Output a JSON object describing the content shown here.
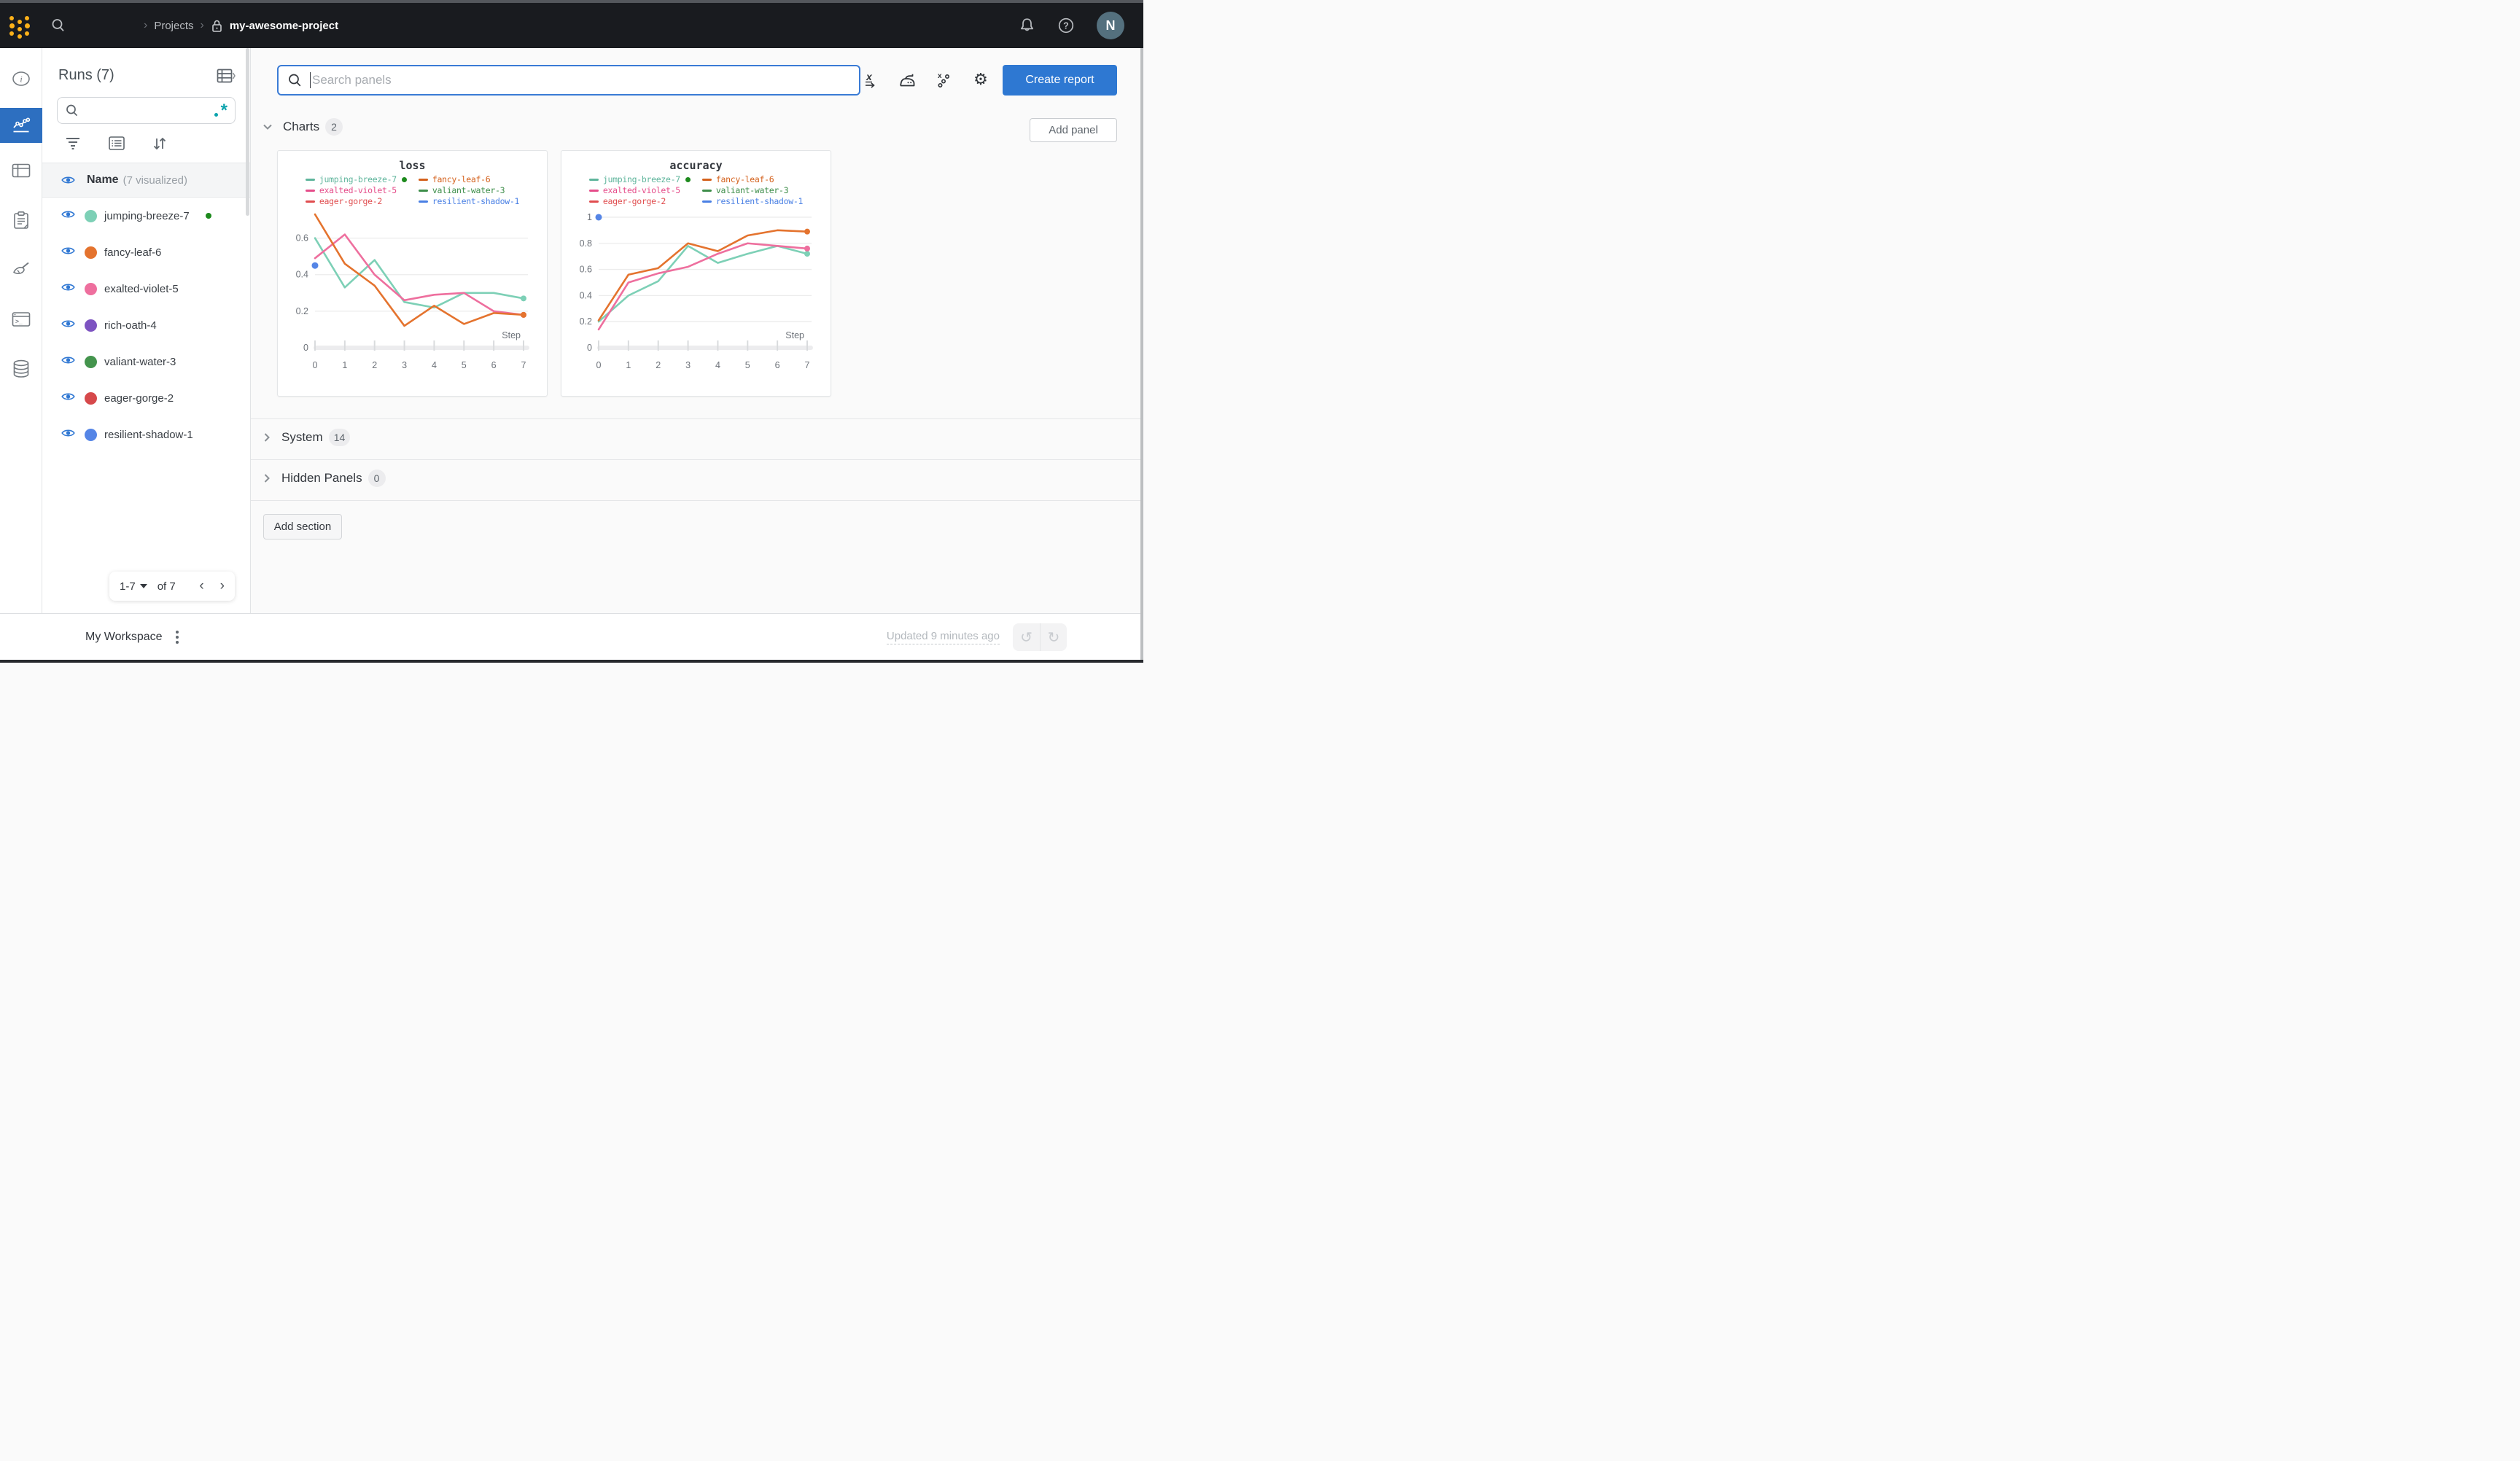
{
  "topbar": {
    "breadcrumb_root": "Projects",
    "project_name": "my-awesome-project",
    "avatar_initial": "N"
  },
  "runs_panel": {
    "title": "Runs (7)",
    "header_name": "Name",
    "header_sub": "(7 visualized)",
    "runs": [
      {
        "name": "jumping-breeze-7",
        "color": "#7dd0b6",
        "running": true
      },
      {
        "name": "fancy-leaf-6",
        "color": "#e4732e",
        "running": false
      },
      {
        "name": "exalted-violet-5",
        "color": "#ee6f9e",
        "running": false
      },
      {
        "name": "rich-oath-4",
        "color": "#7d53c1",
        "running": false
      },
      {
        "name": "valiant-water-3",
        "color": "#44944d",
        "running": false
      },
      {
        "name": "eager-gorge-2",
        "color": "#d6494b",
        "running": false
      },
      {
        "name": "resilient-shadow-1",
        "color": "#5585e6",
        "running": false
      }
    ],
    "pagination": {
      "range": "1-7",
      "of": "of 7"
    }
  },
  "main": {
    "search_placeholder": "Search panels",
    "create_report_label": "Create report",
    "add_panel_label": "Add panel",
    "add_section_label": "Add section",
    "sections": {
      "charts": {
        "label": "Charts",
        "count": "2"
      },
      "system": {
        "label": "System",
        "count": "14"
      },
      "hidden": {
        "label": "Hidden Panels",
        "count": "0"
      }
    }
  },
  "workspace_bar": {
    "title": "My Workspace",
    "updated": "Updated 9 minutes ago"
  },
  "chart_data": [
    {
      "type": "line",
      "title": "loss",
      "xlabel": "Step",
      "x": [
        0,
        1,
        2,
        3,
        4,
        5,
        6,
        7
      ],
      "xticks": [
        0,
        1,
        2,
        3,
        4,
        5,
        6,
        7
      ],
      "yticks": [
        0,
        0.2,
        0.4,
        0.6
      ],
      "ylim": [
        0,
        0.75
      ],
      "grid": true,
      "legend_position": "top",
      "legend": [
        {
          "name": "jumping-breeze-7",
          "color": "#5fb59c",
          "running": true
        },
        {
          "name": "fancy-leaf-6",
          "color": "#d4611c",
          "running": false
        },
        {
          "name": "exalted-violet-5",
          "color": "#e54d8a",
          "running": false
        },
        {
          "name": "valiant-water-3",
          "color": "#3e8e4a",
          "running": false
        },
        {
          "name": "eager-gorge-2",
          "color": "#e04d4f",
          "running": false
        },
        {
          "name": "resilient-shadow-1",
          "color": "#4a80e4",
          "running": false
        }
      ],
      "series": [
        {
          "name": "jumping-breeze-7",
          "color": "#7dd0b6",
          "end_dot": true,
          "values": [
            0.6,
            0.33,
            0.48,
            0.25,
            0.22,
            0.3,
            0.3,
            0.27
          ]
        },
        {
          "name": "exalted-violet-5",
          "color": "#ee6f9e",
          "end_dot": true,
          "values": [
            0.49,
            0.62,
            0.4,
            0.26,
            0.29,
            0.3,
            0.2,
            0.18
          ]
        },
        {
          "name": "fancy-leaf-6",
          "color": "#e4732e",
          "end_dot": true,
          "values": [
            0.73,
            0.46,
            0.34,
            0.12,
            0.23,
            0.13,
            0.19,
            0.18
          ]
        }
      ],
      "points": [
        {
          "name": "resilient-shadow-1",
          "color": "#5585e6",
          "x": 0,
          "y": 0.45
        }
      ]
    },
    {
      "type": "line",
      "title": "accuracy",
      "xlabel": "Step",
      "x": [
        0,
        1,
        2,
        3,
        4,
        5,
        6,
        7
      ],
      "xticks": [
        0,
        1,
        2,
        3,
        4,
        5,
        6,
        7
      ],
      "yticks": [
        0,
        0.2,
        0.4,
        0.6,
        0.8,
        1
      ],
      "ylim": [
        0,
        1.05
      ],
      "grid": true,
      "legend_position": "top",
      "legend": [
        {
          "name": "jumping-breeze-7",
          "color": "#5fb59c",
          "running": true
        },
        {
          "name": "fancy-leaf-6",
          "color": "#d4611c",
          "running": false
        },
        {
          "name": "exalted-violet-5",
          "color": "#e54d8a",
          "running": false
        },
        {
          "name": "valiant-water-3",
          "color": "#3e8e4a",
          "running": false
        },
        {
          "name": "eager-gorge-2",
          "color": "#e04d4f",
          "running": false
        },
        {
          "name": "resilient-shadow-1",
          "color": "#4a80e4",
          "running": false
        }
      ],
      "series": [
        {
          "name": "jumping-breeze-7",
          "color": "#7dd0b6",
          "end_dot": true,
          "values": [
            0.2,
            0.4,
            0.51,
            0.78,
            0.65,
            0.72,
            0.78,
            0.72
          ]
        },
        {
          "name": "exalted-violet-5",
          "color": "#ee6f9e",
          "end_dot": true,
          "values": [
            0.14,
            0.5,
            0.57,
            0.62,
            0.72,
            0.8,
            0.78,
            0.76
          ]
        },
        {
          "name": "fancy-leaf-6",
          "color": "#e4732e",
          "end_dot": true,
          "values": [
            0.21,
            0.56,
            0.61,
            0.8,
            0.74,
            0.86,
            0.9,
            0.89
          ]
        }
      ],
      "points": [
        {
          "name": "resilient-shadow-1",
          "color": "#5585e6",
          "x": 0,
          "y": 1.0
        }
      ]
    }
  ]
}
